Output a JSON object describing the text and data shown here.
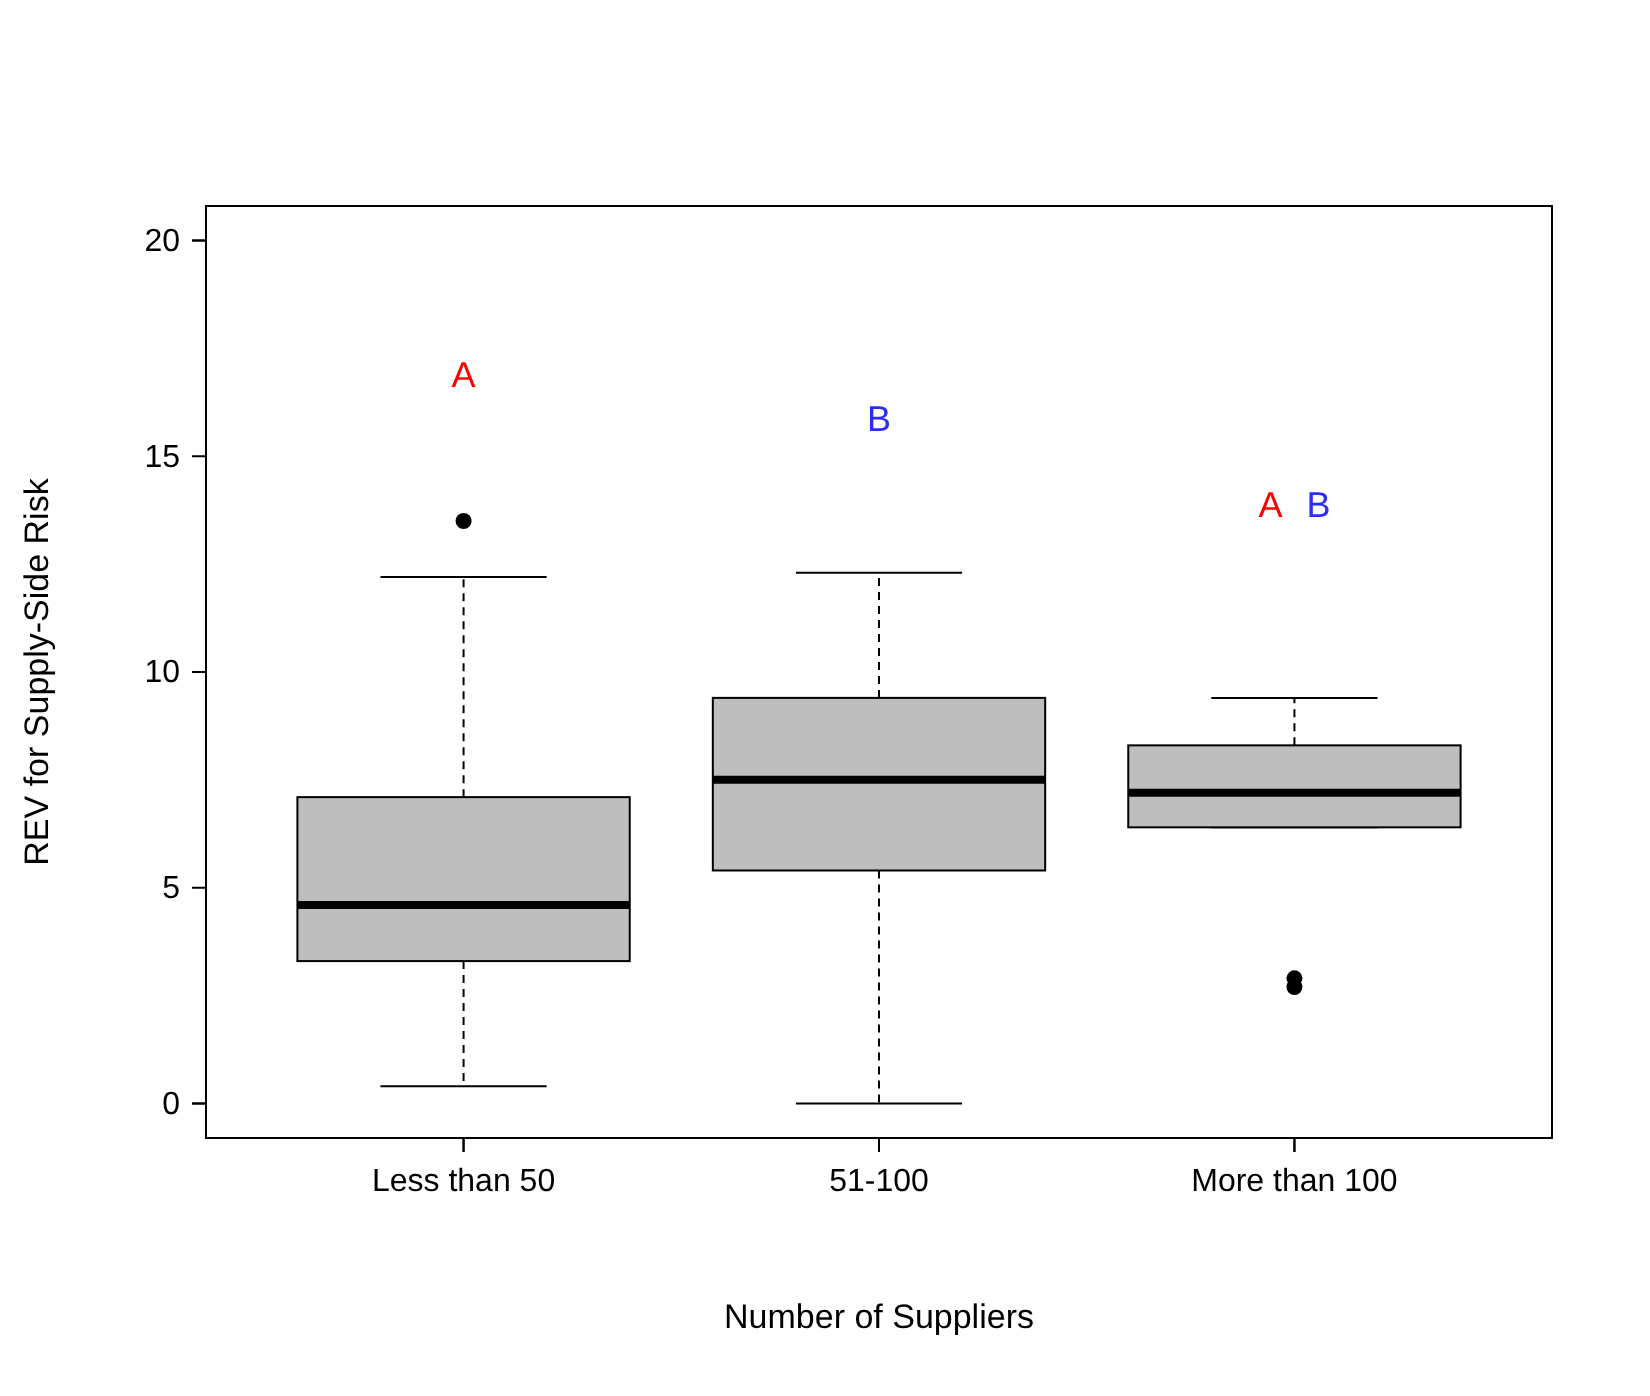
{
  "chart_data": {
    "type": "box",
    "xlabel": "Number of Suppliers",
    "ylabel": "REV for Supply-Side Risk",
    "categories": [
      "Less than 50",
      "51-100",
      "More than 100"
    ],
    "color": "#bebebe",
    "boxes": [
      {
        "low": 0.4,
        "q1": 3.3,
        "median": 4.6,
        "q3": 7.1,
        "high": 12.2,
        "outliers": [
          13.5
        ]
      },
      {
        "low": 0,
        "q1": 5.4,
        "median": 7.5,
        "q3": 9.4,
        "high": 12.3
      },
      {
        "low": 6.4,
        "q1": 6.4,
        "median": 7.2,
        "q3": 8.3,
        "high": 9.4,
        "outliers": [
          2.9,
          2.7
        ]
      }
    ],
    "ylim": [
      -0.8,
      20.8
    ],
    "yticks": [
      0,
      5,
      10,
      15,
      20
    ],
    "grid": false,
    "annotations": [
      "A",
      "B",
      "A",
      "B"
    ]
  }
}
